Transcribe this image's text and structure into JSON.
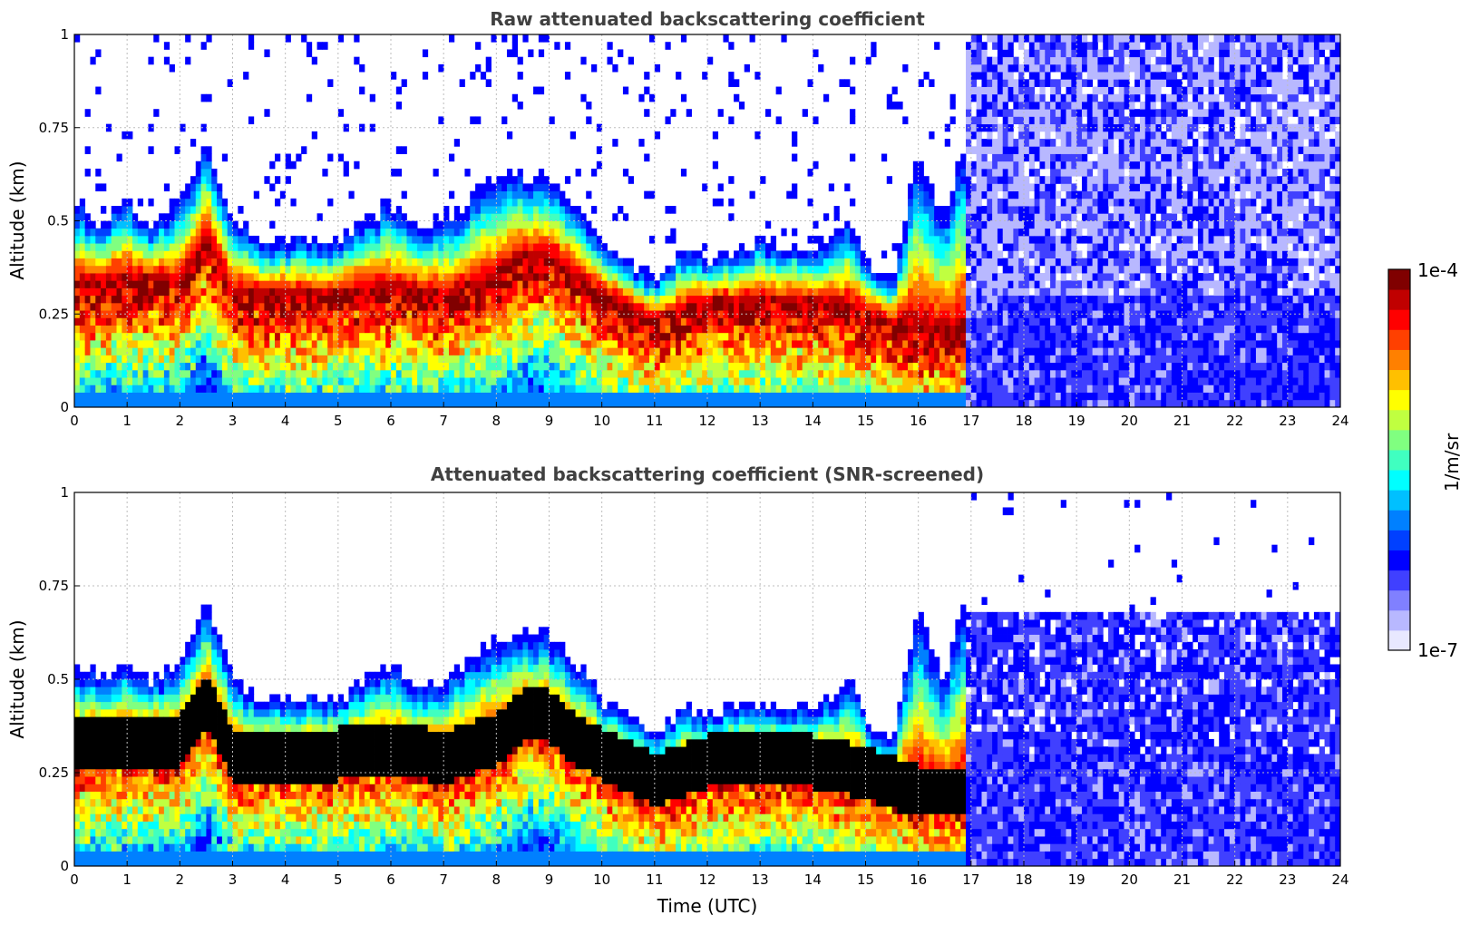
{
  "chart_data": [
    {
      "type": "heatmap",
      "title": "Raw attenuated backscattering coefficient",
      "xlabel": "",
      "ylabel": "Altitude (km)",
      "xlim": [
        0,
        24
      ],
      "ylim": [
        0,
        1
      ],
      "xticks": [
        "0",
        "1",
        "2",
        "3",
        "4",
        "5",
        "6",
        "7",
        "8",
        "9",
        "10",
        "11",
        "12",
        "13",
        "14",
        "15",
        "16",
        "17",
        "18",
        "19",
        "20",
        "21",
        "22",
        "23",
        "24"
      ],
      "yticks": [
        "0",
        "0.25",
        "0.5",
        "0.75",
        "1"
      ],
      "screened": false,
      "layer_center_km": [
        [
          0,
          0.32
        ],
        [
          1,
          0.34
        ],
        [
          2,
          0.33
        ],
        [
          2.5,
          0.45
        ],
        [
          3,
          0.3
        ],
        [
          4,
          0.3
        ],
        [
          5,
          0.3
        ],
        [
          6,
          0.32
        ],
        [
          7,
          0.29
        ],
        [
          8,
          0.34
        ],
        [
          8.5,
          0.4
        ],
        [
          9,
          0.4
        ],
        [
          9.5,
          0.34
        ],
        [
          10,
          0.3
        ],
        [
          11,
          0.23
        ],
        [
          12,
          0.28
        ],
        [
          13,
          0.28
        ],
        [
          14,
          0.28
        ],
        [
          15,
          0.25
        ],
        [
          16,
          0.2
        ],
        [
          16.7,
          0.2
        ]
      ],
      "layer_top_km": [
        [
          0,
          0.55
        ],
        [
          0.5,
          0.5
        ],
        [
          1,
          0.55
        ],
        [
          1.5,
          0.5
        ],
        [
          2,
          0.55
        ],
        [
          2.5,
          0.72
        ],
        [
          3,
          0.5
        ],
        [
          3.5,
          0.45
        ],
        [
          4,
          0.45
        ],
        [
          5,
          0.45
        ],
        [
          6,
          0.55
        ],
        [
          6.5,
          0.48
        ],
        [
          7,
          0.5
        ],
        [
          8,
          0.62
        ],
        [
          8.5,
          0.62
        ],
        [
          9,
          0.62
        ],
        [
          9.5,
          0.55
        ],
        [
          10,
          0.45
        ],
        [
          10.5,
          0.4
        ],
        [
          11,
          0.35
        ],
        [
          11.5,
          0.42
        ],
        [
          12,
          0.4
        ],
        [
          13,
          0.45
        ],
        [
          14,
          0.42
        ],
        [
          14.7,
          0.5
        ],
        [
          15,
          0.4
        ],
        [
          15.5,
          0.32
        ],
        [
          16,
          0.7
        ],
        [
          16.5,
          0.5
        ],
        [
          16.8,
          0.7
        ]
      ],
      "noise_region_start_hour": 16.9
    },
    {
      "type": "heatmap",
      "title": "Attenuated backscattering coefficient (SNR-screened)",
      "xlabel": "Time (UTC)",
      "ylabel": "Altitude (km)",
      "xlim": [
        0,
        24
      ],
      "ylim": [
        0,
        1
      ],
      "xticks": [
        "0",
        "1",
        "2",
        "3",
        "4",
        "5",
        "6",
        "7",
        "8",
        "9",
        "10",
        "11",
        "12",
        "13",
        "14",
        "15",
        "16",
        "17",
        "18",
        "19",
        "20",
        "21",
        "22",
        "23",
        "24"
      ],
      "yticks": [
        "0",
        "0.25",
        "0.5",
        "0.75",
        "1"
      ],
      "screened": true,
      "screened_top_km_after_17h": 0.68
    }
  ],
  "colorbar": {
    "max_label": "1e-4",
    "min_label": "1e-7",
    "unit_label": "1/m/sr",
    "colormap": [
      "#e8e8ff",
      "#b8b8ff",
      "#8080ff",
      "#4040ff",
      "#0000ff",
      "#0040ff",
      "#0080ff",
      "#00c0ff",
      "#00ffff",
      "#40ffc0",
      "#80ff80",
      "#c0ff40",
      "#ffff00",
      "#ffc000",
      "#ff8000",
      "#ff4000",
      "#ff0000",
      "#c00000",
      "#800000"
    ]
  }
}
